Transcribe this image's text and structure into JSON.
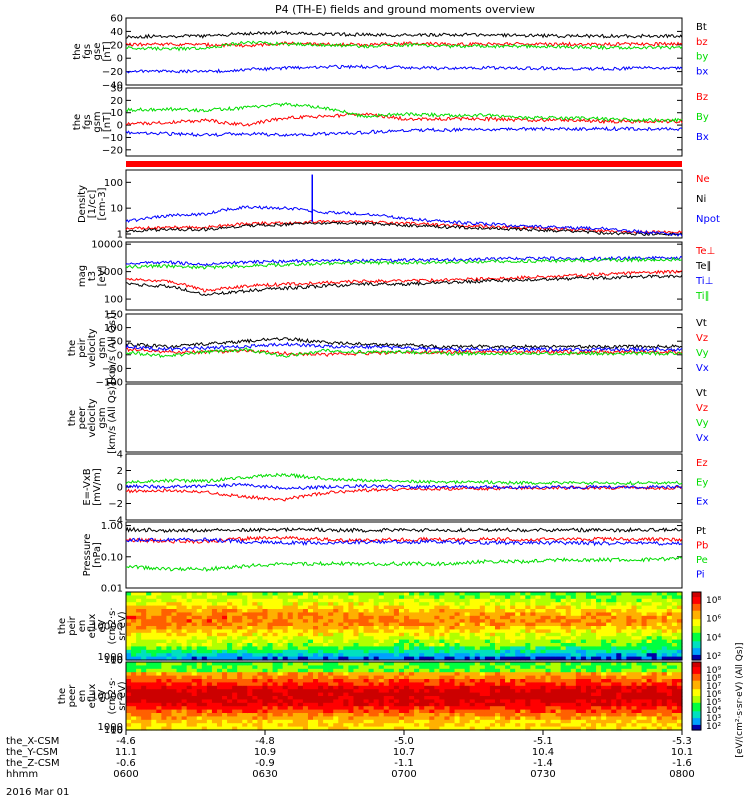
{
  "title": "P4 (TH-E) fields and ground moments overview",
  "date": "2016 Mar 01",
  "colors": {
    "black": "#000000",
    "red": "#ff0000",
    "green": "#00dd00",
    "blue": "#0000ff"
  },
  "chart_data": [
    {
      "type": "line",
      "id": "fgs",
      "ylabel": [
        "the",
        "fgs",
        "gse",
        "[nT]"
      ],
      "ylim": [
        -40,
        60
      ],
      "ticks": [
        "60",
        "40",
        "20",
        "0",
        "−20",
        "−40"
      ],
      "tick_values": [
        60,
        40,
        20,
        0,
        -20,
        -40
      ],
      "series": [
        {
          "name": "Bt",
          "color": "black",
          "values": [
            32,
            33,
            33,
            37,
            38,
            36,
            35,
            34,
            35,
            35,
            34,
            33,
            33,
            33,
            33
          ]
        },
        {
          "name": "bz",
          "color": "red",
          "values": [
            20,
            21,
            20,
            19,
            22,
            21,
            20,
            22,
            21,
            21,
            21,
            21,
            21,
            21,
            21
          ]
        },
        {
          "name": "by",
          "color": "green",
          "values": [
            15,
            14,
            14,
            24,
            21,
            20,
            18,
            20,
            18,
            18,
            18,
            17,
            16,
            16,
            16
          ]
        },
        {
          "name": "bx",
          "color": "blue",
          "values": [
            -20,
            -20,
            -20,
            -17,
            -15,
            -13,
            -13,
            -14,
            -15,
            -14,
            -15,
            -15,
            -16,
            -15,
            -15
          ]
        }
      ]
    },
    {
      "type": "line",
      "id": "fgs_gsm",
      "ylabel": [
        "the",
        "fgs",
        "gsm",
        "[nT]"
      ],
      "ylim": [
        -25,
        30
      ],
      "ticks": [
        "30",
        "20",
        "10",
        "0",
        "−10",
        "−20"
      ],
      "tick_values": [
        30,
        20,
        10,
        0,
        -10,
        -20
      ],
      "series": [
        {
          "name": "Bz",
          "color": "red",
          "values": [
            1,
            2,
            4,
            0,
            6,
            7,
            9,
            5,
            5,
            5,
            4,
            4,
            3,
            3,
            3
          ]
        },
        {
          "name": "By",
          "color": "green",
          "values": [
            12,
            13,
            12,
            14,
            17,
            14,
            7,
            9,
            8,
            8,
            6,
            6,
            5,
            4,
            4
          ]
        },
        {
          "name": "Bx",
          "color": "blue",
          "values": [
            -6,
            -7,
            -8,
            -7,
            -8,
            -7,
            -6,
            -4,
            -4,
            -4,
            -3,
            -3,
            -3,
            -3,
            -3
          ]
        }
      ]
    },
    {
      "type": "line",
      "id": "density",
      "log": true,
      "ylabel": [
        "Density",
        "[1/cc]",
        "[cm-3]"
      ],
      "ylim": [
        0.7,
        300
      ],
      "ticks": [
        "100",
        "10",
        "1"
      ],
      "tick_values": [
        100,
        10,
        1
      ],
      "series": [
        {
          "name": "Ne",
          "color": "red",
          "values": [
            1.6,
            1.8,
            1.8,
            2.5,
            2.7,
            3,
            3,
            2.6,
            2.2,
            2,
            1.7,
            1.5,
            1.3,
            1.2,
            1.2
          ]
        },
        {
          "name": "Ni",
          "color": "black",
          "values": [
            1.3,
            1.5,
            1.5,
            2.1,
            2.3,
            2.6,
            2.6,
            2.2,
            1.9,
            1.7,
            1.5,
            1.3,
            1.1,
            1,
            1
          ]
        },
        {
          "name": "Npot",
          "color": "blue",
          "values": [
            3,
            5,
            6,
            11,
            10,
            7,
            6,
            4,
            3,
            2.5,
            2,
            1.8,
            1.6,
            1.2,
            0.9
          ]
        }
      ]
    },
    {
      "type": "line",
      "id": "temp",
      "log": true,
      "ylabel": [
        "mag",
        "t3",
        "[eV]"
      ],
      "ylim": [
        40,
        12000
      ],
      "ticks": [
        "10000",
        "1000",
        "100"
      ],
      "tick_values": [
        10000,
        1000,
        100
      ],
      "series": [
        {
          "name": "Te⊥",
          "color": "red",
          "values": [
            500,
            450,
            200,
            300,
            350,
            400,
            450,
            450,
            500,
            550,
            600,
            700,
            800,
            900,
            1000
          ]
        },
        {
          "name": "Te∥",
          "color": "black",
          "values": [
            350,
            300,
            140,
            200,
            250,
            300,
            350,
            350,
            400,
            450,
            500,
            550,
            600,
            650,
            700
          ]
        },
        {
          "name": "Ti⊥",
          "color": "blue",
          "values": [
            2000,
            2200,
            1800,
            2200,
            2400,
            2500,
            2500,
            2600,
            2700,
            2800,
            3000,
            3000,
            3000,
            3100,
            3100
          ]
        },
        {
          "name": "Ti∥",
          "color": "green",
          "values": [
            1500,
            1600,
            1400,
            1600,
            1800,
            2000,
            2100,
            2100,
            2200,
            2300,
            2400,
            2500,
            2600,
            2700,
            2800
          ]
        }
      ]
    },
    {
      "type": "line",
      "id": "peir_vel",
      "ylabel": [
        "the",
        "peir",
        "velocity",
        "gsm",
        "[km/s (All Qs)]"
      ],
      "ylim": [
        -100,
        150
      ],
      "ticks": [
        "150",
        "100",
        "50",
        "0",
        "−50",
        "−100"
      ],
      "tick_values": [
        150,
        100,
        50,
        0,
        -50,
        -100
      ],
      "series": [
        {
          "name": "Vt",
          "color": "black",
          "values": [
            40,
            30,
            40,
            50,
            60,
            45,
            40,
            35,
            30,
            30,
            30,
            30,
            30,
            30,
            30
          ]
        },
        {
          "name": "Vz",
          "color": "red",
          "values": [
            20,
            10,
            10,
            15,
            5,
            0,
            5,
            10,
            10,
            10,
            10,
            10,
            10,
            10,
            10
          ]
        },
        {
          "name": "Vy",
          "color": "green",
          "values": [
            10,
            -5,
            10,
            20,
            -5,
            15,
            10,
            10,
            5,
            5,
            5,
            5,
            5,
            5,
            5
          ]
        },
        {
          "name": "Vx",
          "color": "blue",
          "values": [
            30,
            20,
            25,
            30,
            40,
            30,
            30,
            25,
            20,
            20,
            20,
            20,
            20,
            20,
            20
          ]
        }
      ]
    },
    {
      "type": "line",
      "id": "peer_vel",
      "ylabel": [
        "the",
        "peer",
        "velocity",
        "gsm",
        "[km/s (All Qs)]"
      ],
      "ylim": [
        -100,
        150
      ],
      "ticks": [],
      "tick_values": [],
      "series": [
        {
          "name": "Vt",
          "color": "black",
          "values": []
        },
        {
          "name": "Vz",
          "color": "red",
          "values": []
        },
        {
          "name": "Vy",
          "color": "green",
          "values": []
        },
        {
          "name": "Vx",
          "color": "blue",
          "values": []
        }
      ]
    },
    {
      "type": "line",
      "id": "efield",
      "ylabel": [
        "E=-VxB",
        "[mV/m]"
      ],
      "ylim": [
        -4,
        4
      ],
      "ticks": [
        "4",
        "2",
        "0",
        "−2",
        "−4"
      ],
      "tick_values": [
        4,
        2,
        0,
        -2,
        -4
      ],
      "series": [
        {
          "name": "Ez",
          "color": "red",
          "values": [
            -0.5,
            -0.4,
            -0.6,
            -1.2,
            -1.5,
            -0.7,
            -0.4,
            -0.3,
            -0.2,
            -0.2,
            -0.1,
            -0.1,
            -0.1,
            -0.1,
            -0.1
          ]
        },
        {
          "name": "Ey",
          "color": "green",
          "values": [
            0.5,
            0.8,
            0.7,
            1.2,
            1.5,
            1,
            0.8,
            0.7,
            0.6,
            0.6,
            0.5,
            0.5,
            0.5,
            0.5,
            0.5
          ]
        },
        {
          "name": "Ex",
          "color": "blue",
          "values": [
            0.1,
            0,
            0.1,
            0.3,
            -0.2,
            0,
            0.1,
            0,
            0,
            0,
            0,
            0,
            0,
            0,
            0
          ]
        }
      ]
    },
    {
      "type": "line",
      "id": "pressure",
      "log": true,
      "ylabel": [
        "Pressure",
        "[nPa]"
      ],
      "ylim": [
        0.01,
        1.3
      ],
      "ticks": [
        "1.00",
        "0.10",
        "0.01"
      ],
      "tick_values": [
        1,
        0.1,
        0.01
      ],
      "series": [
        {
          "name": "Pt",
          "color": "black",
          "values": [
            0.75,
            0.7,
            0.7,
            0.72,
            0.75,
            0.73,
            0.7,
            0.72,
            0.72,
            0.72,
            0.72,
            0.72,
            0.72,
            0.72,
            0.72
          ]
        },
        {
          "name": "Pb",
          "color": "red",
          "values": [
            0.35,
            0.32,
            0.3,
            0.38,
            0.4,
            0.36,
            0.34,
            0.36,
            0.36,
            0.36,
            0.36,
            0.36,
            0.36,
            0.36,
            0.36
          ]
        },
        {
          "name": "Pe",
          "color": "green",
          "values": [
            0.05,
            0.04,
            0.04,
            0.05,
            0.06,
            0.06,
            0.06,
            0.06,
            0.06,
            0.07,
            0.07,
            0.08,
            0.08,
            0.08,
            0.09
          ]
        },
        {
          "name": "Pi",
          "color": "blue",
          "values": [
            0.35,
            0.35,
            0.35,
            0.3,
            0.28,
            0.28,
            0.3,
            0.3,
            0.3,
            0.28,
            0.28,
            0.28,
            0.27,
            0.27,
            0.27
          ]
        }
      ]
    },
    {
      "type": "heatmap",
      "id": "peir_en",
      "ylabel": [
        "the",
        "peir",
        "en",
        "eflux",
        "eV",
        "(cm2·s·",
        "sr·eV)"
      ],
      "ticks": [
        "10000",
        "1000",
        "100",
        "10"
      ],
      "tick_values": [
        10000,
        1000,
        100,
        10
      ],
      "ylim": [
        6,
        20000
      ],
      "colorbar_ticks": [
        "10⁸",
        "10⁶",
        "10⁴",
        "10²"
      ],
      "colorbar_label": "[eV/(cm²·s·sr·eV) (All Qs)]"
    },
    {
      "type": "heatmap",
      "id": "peer_en",
      "ylabel": [
        "the",
        "peer",
        "en",
        "eflux",
        "eV",
        "(cm2·s·",
        "sr·eV)"
      ],
      "ticks": [
        "10000",
        "1000",
        "100",
        "10"
      ],
      "tick_values": [
        10000,
        1000,
        100,
        10
      ],
      "ylim": [
        6,
        20000
      ],
      "colorbar_ticks": [
        "10⁹",
        "10⁸",
        "10⁷",
        "10⁶",
        "10⁵",
        "10⁴",
        "10³",
        "10²"
      ],
      "colorbar_label": "[eV/(cm²·s·sr·eV) (All Qs)]"
    }
  ],
  "xaxis": {
    "rows": [
      {
        "label": "the_X-CSM",
        "values": [
          "-4.6",
          "-4.8",
          "-5.0",
          "-5.1",
          "-5.3"
        ]
      },
      {
        "label": "the_Y-CSM",
        "values": [
          "11.1",
          "10.9",
          "10.7",
          "10.4",
          "10.1"
        ]
      },
      {
        "label": "the_Z-CSM",
        "values": [
          "-0.6",
          "-0.9",
          "-1.1",
          "-1.4",
          "-1.6"
        ]
      },
      {
        "label": "hhmm",
        "values": [
          "0600",
          "0630",
          "0700",
          "0730",
          "0800"
        ]
      }
    ]
  }
}
